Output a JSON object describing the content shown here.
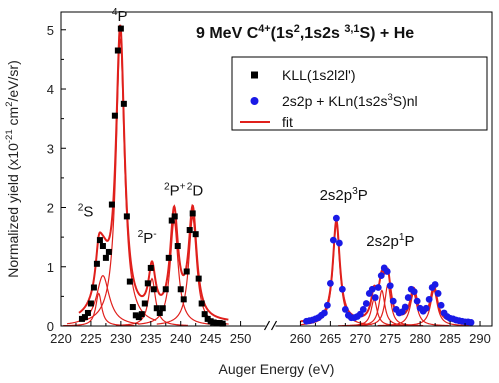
{
  "chart_data": {
    "type": "scatter",
    "title": "9 MeV C⁴⁺(1s²,1s2s ³˒¹S) + He",
    "title_parts": [
      "9 MeV C",
      "4+",
      "(1s",
      "2",
      ",1s2s ",
      "3,1",
      "S) + He"
    ],
    "xlabel": "Auger Energy (eV)",
    "ylabel_parts": [
      "Normalized yield (x10",
      "-21",
      " cm",
      "2",
      "/eV/sr)"
    ],
    "xlim": [
      220,
      292
    ],
    "ylim": [
      0,
      5.3
    ],
    "x_ticks": [
      220,
      225,
      230,
      235,
      240,
      245,
      250,
      260,
      265,
      270,
      275,
      280,
      285,
      290
    ],
    "y_ticks": [
      0,
      1,
      2,
      3,
      4,
      5
    ],
    "axis_break": "250-260",
    "legend_position": "top-right",
    "legend": [
      {
        "label": "KLL(1s2l2l')",
        "marker": "square",
        "color": "#000000"
      },
      {
        "label_parts": [
          "2s2p + KLn(1s2s",
          "3",
          "S)nl"
        ],
        "marker": "circle",
        "color": "#1a1ae6"
      },
      {
        "label": "fit",
        "marker": "line",
        "color": "#e0201c"
      }
    ],
    "annotations": [
      {
        "id": "4P",
        "parts": [
          "",
          "4",
          "P"
        ],
        "x": 228.5,
        "y": 5.15
      },
      {
        "id": "2S",
        "parts": [
          "",
          "2",
          "S"
        ],
        "x": 222.8,
        "y": 1.85
      },
      {
        "id": "2Pm",
        "parts": [
          "",
          "2",
          "P",
          "-"
        ],
        "x": 232.8,
        "y": 1.4
      },
      {
        "id": "2Pp",
        "parts": [
          "",
          "2",
          "P",
          "+"
        ],
        "x": 237.2,
        "y": 2.2
      },
      {
        "id": "2D",
        "parts": [
          "",
          "2",
          "D"
        ],
        "x": 241.0,
        "y": 2.2
      },
      {
        "id": "3P",
        "parts": [
          "2s2p",
          "3",
          "P"
        ],
        "x": 263.2,
        "y": 2.13
      },
      {
        "id": "1P",
        "parts": [
          "2s2p",
          "1",
          "P"
        ],
        "x": 271.0,
        "y": 1.35
      }
    ],
    "series": [
      {
        "name": "KLL(1s2l2l')",
        "x": [
          223.5,
          224.0,
          224.5,
          225.0,
          225.5,
          226.0,
          226.5,
          227.0,
          227.5,
          228.0,
          228.5,
          229.0,
          229.5,
          230.0,
          230.5,
          231.0,
          231.5,
          232.0,
          232.5,
          233.0,
          233.5,
          234.0,
          234.5,
          235.0,
          235.5,
          236.0,
          236.5,
          237.0,
          237.5,
          238.0,
          238.5,
          239.0,
          239.5,
          240.0,
          240.5,
          241.0,
          241.5,
          242.0,
          242.5,
          243.0,
          243.5,
          244.0,
          244.5,
          245.0,
          245.5,
          246.0,
          246.5,
          247.0
        ],
        "y": [
          0.12,
          0.15,
          0.22,
          0.38,
          0.65,
          1.05,
          1.45,
          1.35,
          1.15,
          1.25,
          2.05,
          3.55,
          4.65,
          5.02,
          3.75,
          1.85,
          0.75,
          0.32,
          0.18,
          0.15,
          0.2,
          0.38,
          0.72,
          0.98,
          0.62,
          0.3,
          0.22,
          0.3,
          0.62,
          1.15,
          1.78,
          1.85,
          1.35,
          0.62,
          0.45,
          0.92,
          1.62,
          1.9,
          1.55,
          0.8,
          0.38,
          0.2,
          0.12,
          0.08,
          0.06,
          0.05,
          0.05,
          0.04
        ]
      },
      {
        "name": "2s2p + KLn(1s2s³S)nl",
        "x": [
          261.0,
          261.5,
          262.0,
          262.5,
          263.0,
          263.5,
          264.0,
          264.5,
          265.0,
          265.5,
          266.0,
          266.5,
          267.0,
          267.5,
          268.0,
          268.5,
          269.0,
          269.5,
          270.0,
          270.5,
          271.0,
          271.5,
          272.0,
          272.5,
          273.0,
          273.5,
          274.0,
          274.5,
          275.0,
          275.5,
          276.0,
          276.5,
          277.0,
          277.5,
          278.0,
          278.5,
          279.0,
          279.5,
          280.0,
          280.5,
          281.0,
          281.5,
          282.0,
          282.5,
          283.0,
          283.5,
          284.0,
          284.5,
          285.0,
          285.5,
          286.0,
          286.5,
          287.0,
          287.5,
          288.0,
          288.5
        ],
        "y": [
          0.08,
          0.09,
          0.1,
          0.12,
          0.14,
          0.18,
          0.22,
          0.35,
          0.72,
          1.45,
          1.82,
          1.4,
          0.62,
          0.28,
          0.18,
          0.14,
          0.14,
          0.16,
          0.2,
          0.28,
          0.38,
          0.55,
          0.62,
          0.48,
          0.65,
          0.85,
          0.98,
          0.92,
          0.68,
          0.42,
          0.28,
          0.22,
          0.24,
          0.32,
          0.48,
          0.62,
          0.58,
          0.42,
          0.3,
          0.25,
          0.3,
          0.45,
          0.65,
          0.7,
          0.55,
          0.35,
          0.22,
          0.16,
          0.13,
          0.12,
          0.1,
          0.09,
          0.08,
          0.07,
          0.07,
          0.06
        ]
      }
    ],
    "fit_components": [
      {
        "center": 227.0,
        "amp": 0.85,
        "width": 1.3
      },
      {
        "center": 226.3,
        "amp": 0.55,
        "width": 0.6
      },
      {
        "center": 229.9,
        "amp": 4.85,
        "width": 0.85
      },
      {
        "center": 235.2,
        "amp": 0.8,
        "width": 0.7
      },
      {
        "center": 238.9,
        "amp": 1.78,
        "width": 0.8
      },
      {
        "center": 242.0,
        "amp": 1.84,
        "width": 0.8
      },
      {
        "center": 266.0,
        "amp": 1.72,
        "width": 0.7
      },
      {
        "center": 272.3,
        "amp": 0.45,
        "width": 0.6
      },
      {
        "center": 273.6,
        "amp": 0.6,
        "width": 0.6
      },
      {
        "center": 274.6,
        "amp": 0.7,
        "width": 0.6
      },
      {
        "center": 278.9,
        "amp": 0.55,
        "width": 0.7
      },
      {
        "center": 282.3,
        "amp": 0.6,
        "width": 0.7
      }
    ],
    "colors": {
      "square": "#000000",
      "circle": "#1a1ae6",
      "fit": "#e0201c",
      "axis": "#000000"
    }
  }
}
